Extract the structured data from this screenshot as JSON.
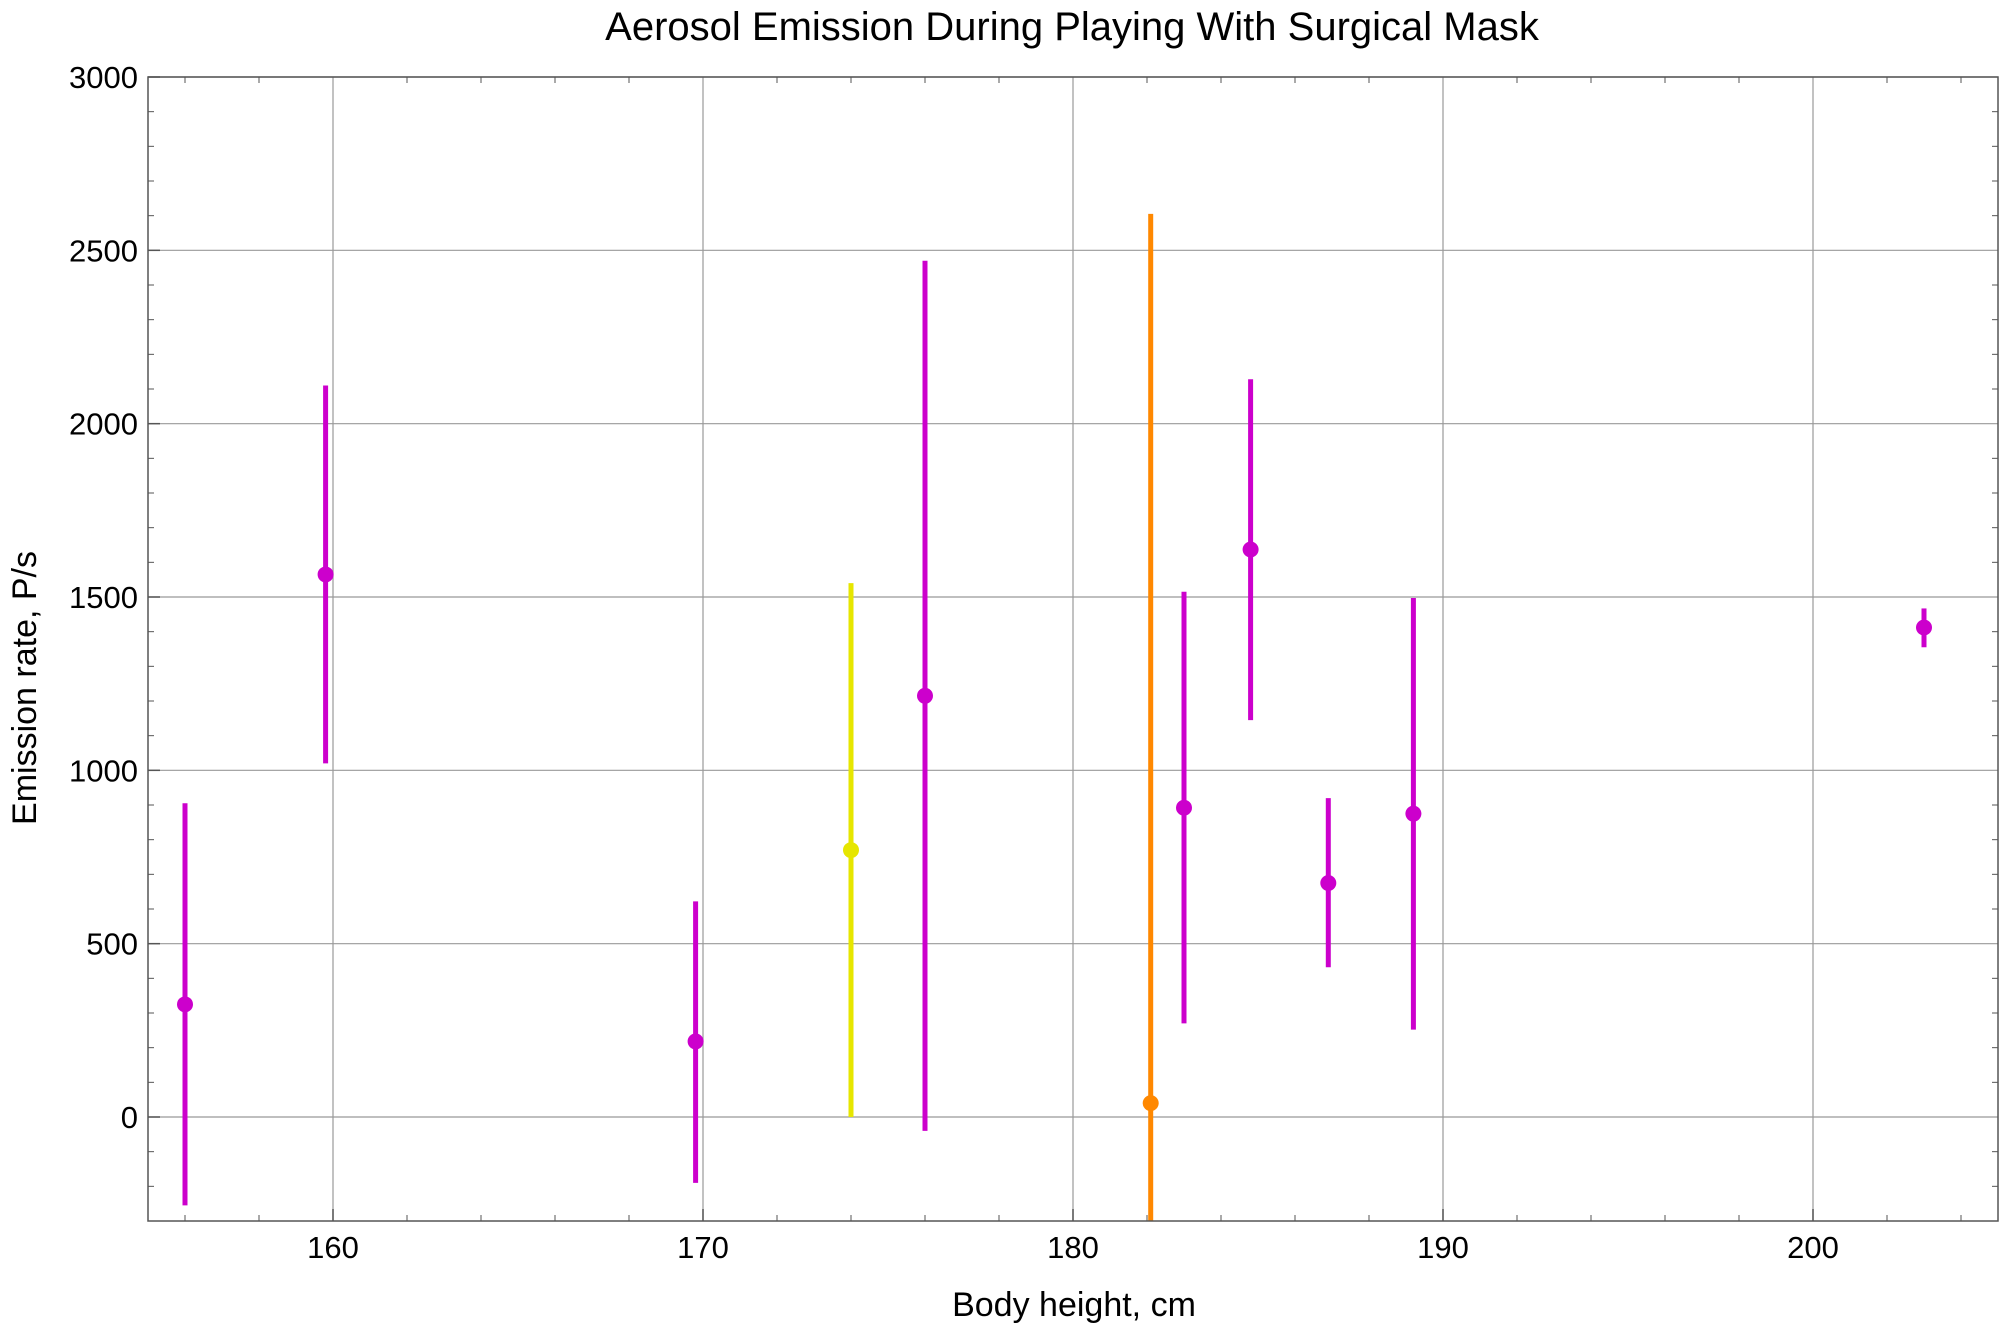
{
  "chart_data": {
    "type": "scatter",
    "title": "Aerosol Emission During Playing With Surgical Mask",
    "xlabel": "Body height,  cm",
    "ylabel": "Emission rate,  P/s",
    "xlim": [
      155,
      205
    ],
    "ylim": [
      -300,
      3000
    ],
    "x_ticks": [
      160,
      170,
      180,
      190,
      200
    ],
    "y_ticks": [
      0,
      500,
      1000,
      1500,
      2000,
      2500,
      3000
    ],
    "grid": true,
    "colors": {
      "magenta": "#cc00cc",
      "yellow": "#e6e600",
      "orange": "#ff8800",
      "grid": "#999999",
      "frame": "#555555"
    },
    "points": [
      {
        "x": 156.0,
        "y": 325,
        "low": -255,
        "high": 905,
        "color": "magenta"
      },
      {
        "x": 159.8,
        "y": 1565,
        "low": 1020,
        "high": 2110,
        "color": "magenta"
      },
      {
        "x": 169.8,
        "y": 218,
        "low": -190,
        "high": 622,
        "color": "magenta"
      },
      {
        "x": 174.0,
        "y": 770,
        "low": 0,
        "high": 1540,
        "color": "yellow"
      },
      {
        "x": 176.0,
        "y": 1215,
        "low": -40,
        "high": 2470,
        "color": "magenta"
      },
      {
        "x": 182.1,
        "y": 40,
        "low": -300,
        "high": 2605,
        "color": "orange"
      },
      {
        "x": 183.0,
        "y": 892,
        "low": 270,
        "high": 1515,
        "color": "magenta"
      },
      {
        "x": 184.8,
        "y": 1637,
        "low": 1145,
        "high": 2128,
        "color": "magenta"
      },
      {
        "x": 186.9,
        "y": 675,
        "low": 432,
        "high": 920,
        "color": "magenta"
      },
      {
        "x": 189.2,
        "y": 875,
        "low": 252,
        "high": 1497,
        "color": "magenta"
      },
      {
        "x": 203.0,
        "y": 1412,
        "low": 1355,
        "high": 1467,
        "color": "magenta"
      }
    ]
  }
}
